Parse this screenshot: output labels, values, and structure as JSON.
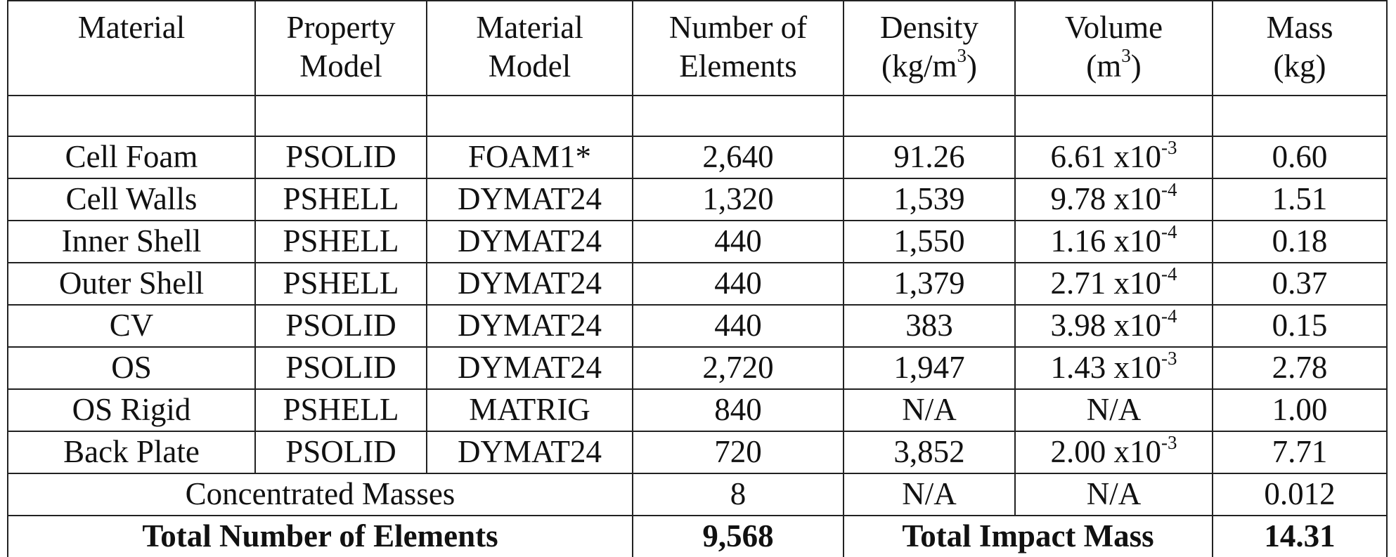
{
  "headers": [
    {
      "line1": "Material",
      "line2": ""
    },
    {
      "line1": "Property",
      "line2": "Model"
    },
    {
      "line1": "Material",
      "line2": "Model"
    },
    {
      "line1": "Number of",
      "line2": "Elements"
    },
    {
      "line1": "Density",
      "line2_pre": "(kg/m",
      "line2_sup": "3",
      "line2_post": ")"
    },
    {
      "line1": "Volume",
      "line2_pre": "(m",
      "line2_sup": "3",
      "line2_post": ")"
    },
    {
      "line1": "Mass",
      "line2": "(kg)"
    }
  ],
  "rows": [
    {
      "material": "Cell Foam",
      "property": "PSOLID",
      "model": "FOAM1*",
      "elements": "2,640",
      "density": "91.26",
      "vol_base": "6.61 x10",
      "vol_exp": "-3",
      "mass": "0.60"
    },
    {
      "material": "Cell Walls",
      "property": "PSHELL",
      "model": "DYMAT24",
      "elements": "1,320",
      "density": "1,539",
      "vol_base": "9.78 x10",
      "vol_exp": "-4",
      "mass": "1.51"
    },
    {
      "material": "Inner Shell",
      "property": "PSHELL",
      "model": "DYMAT24",
      "elements": "440",
      "density": "1,550",
      "vol_base": "1.16 x10",
      "vol_exp": "-4",
      "mass": "0.18"
    },
    {
      "material": "Outer Shell",
      "property": "PSHELL",
      "model": "DYMAT24",
      "elements": "440",
      "density": "1,379",
      "vol_base": "2.71 x10",
      "vol_exp": "-4",
      "mass": "0.37"
    },
    {
      "material": "CV",
      "property": "PSOLID",
      "model": "DYMAT24",
      "elements": "440",
      "density": "383",
      "vol_base": "3.98 x10",
      "vol_exp": "-4",
      "mass": "0.15"
    },
    {
      "material": "OS",
      "property": "PSOLID",
      "model": "DYMAT24",
      "elements": "2,720",
      "density": "1,947",
      "vol_base": "1.43 x10",
      "vol_exp": "-3",
      "mass": "2.78"
    },
    {
      "material": "OS Rigid",
      "property": "PSHELL",
      "model": "MATRIG",
      "elements": "840",
      "density": "N/A",
      "vol_base": "N/A",
      "vol_exp": "",
      "mass": "1.00"
    },
    {
      "material": "Back Plate",
      "property": "PSOLID",
      "model": "DYMAT24",
      "elements": "720",
      "density": "3,852",
      "vol_base": "2.00 x10",
      "vol_exp": "-3",
      "mass": "7.71"
    }
  ],
  "concentrated": {
    "label": "Concentrated Masses",
    "elements": "8",
    "density": "N/A",
    "volume": "N/A",
    "mass": "0.012"
  },
  "totals": {
    "elements_label": "Total Number of Elements",
    "elements_value": "9,568",
    "mass_label": "Total Impact Mass",
    "mass_value": "14.31"
  }
}
